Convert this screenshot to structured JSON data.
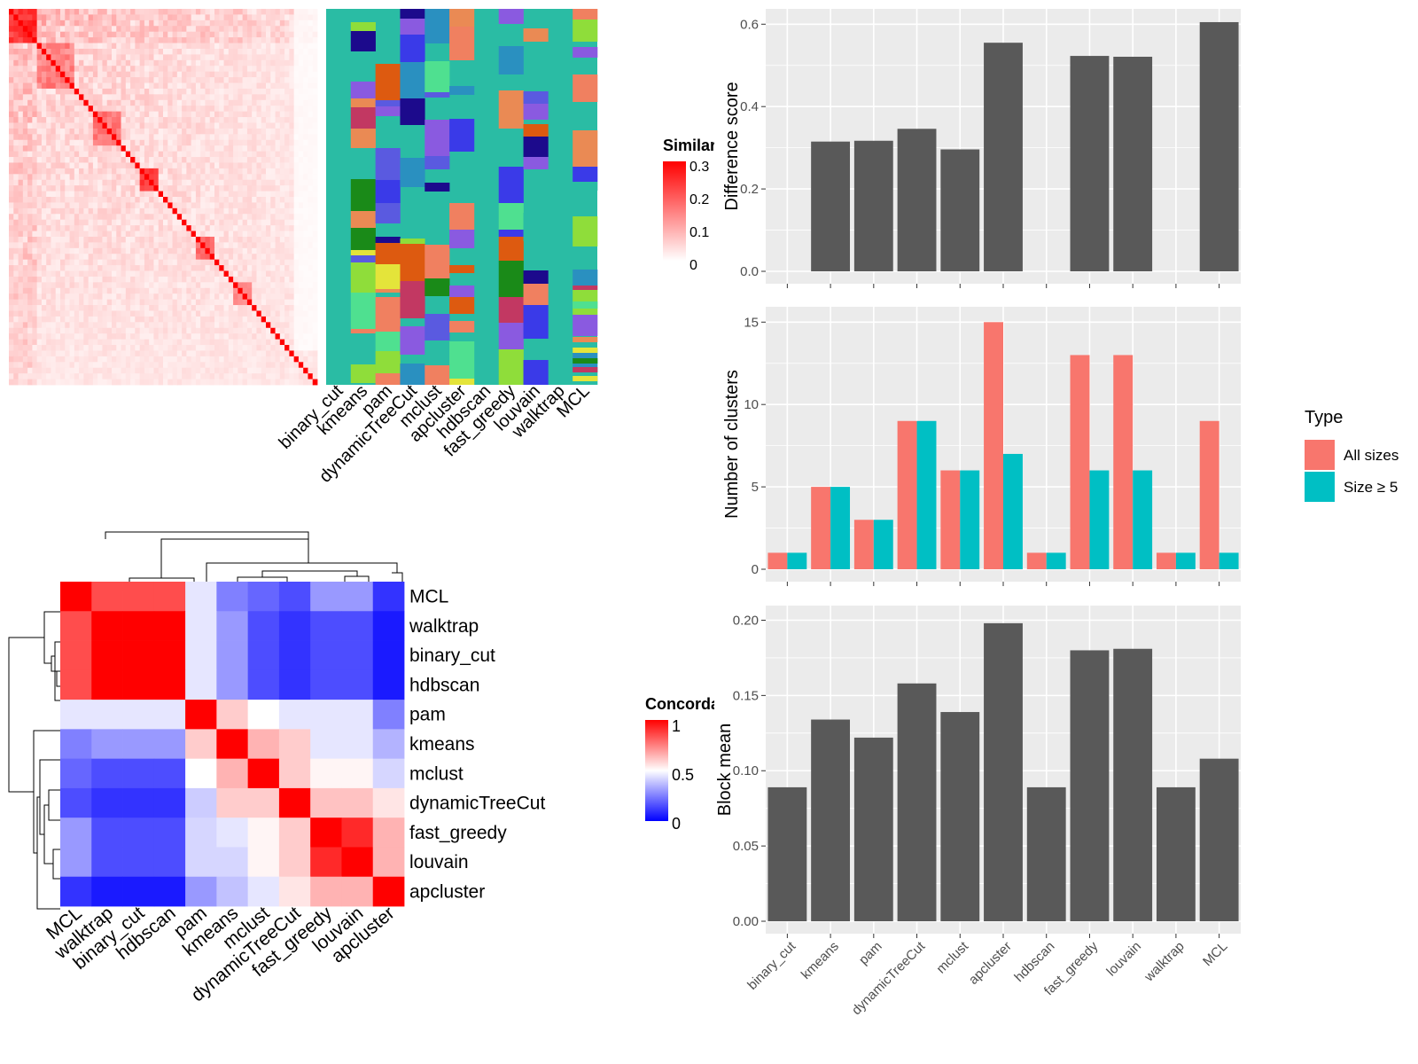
{
  "chart_data": [
    {
      "type": "heatmap",
      "legend_title": "Similarity",
      "legend_ticks": [
        "0.3",
        "0.2",
        "0.1",
        "0"
      ],
      "methods": [
        "binary_cut",
        "kmeans",
        "pam",
        "dynamicTreeCut",
        "mclust",
        "apcluster",
        "hdbscan",
        "fast_greedy",
        "louvain",
        "walktrap",
        "MCL"
      ]
    },
    {
      "type": "heatmap",
      "legend_title": "Concordance",
      "legend_ticks": [
        "1",
        "0.5",
        "0"
      ],
      "rows": [
        "MCL",
        "walktrap",
        "binary_cut",
        "hdbscan",
        "pam",
        "kmeans",
        "mclust",
        "dynamicTreeCut",
        "fast_greedy",
        "louvain",
        "apcluster"
      ],
      "cols": [
        "MCL",
        "walktrap",
        "binary_cut",
        "hdbscan",
        "pam",
        "kmeans",
        "mclust",
        "dynamicTreeCut",
        "fast_greedy",
        "louvain",
        "apcluster"
      ],
      "values": [
        [
          1.0,
          0.85,
          0.85,
          0.85,
          0.45,
          0.25,
          0.2,
          0.15,
          0.3,
          0.3,
          0.1
        ],
        [
          0.85,
          1.0,
          1.0,
          1.0,
          0.45,
          0.3,
          0.15,
          0.1,
          0.15,
          0.15,
          0.05
        ],
        [
          0.85,
          1.0,
          1.0,
          1.0,
          0.45,
          0.3,
          0.15,
          0.1,
          0.15,
          0.15,
          0.05
        ],
        [
          0.85,
          1.0,
          1.0,
          1.0,
          0.45,
          0.3,
          0.15,
          0.1,
          0.15,
          0.15,
          0.05
        ],
        [
          0.45,
          0.45,
          0.45,
          0.45,
          1.0,
          0.6,
          0.5,
          0.45,
          0.45,
          0.45,
          0.25
        ],
        [
          0.25,
          0.3,
          0.3,
          0.3,
          0.6,
          1.0,
          0.65,
          0.6,
          0.45,
          0.45,
          0.35
        ],
        [
          0.2,
          0.15,
          0.15,
          0.15,
          0.5,
          0.65,
          1.0,
          0.6,
          0.52,
          0.52,
          0.42
        ],
        [
          0.15,
          0.1,
          0.1,
          0.1,
          0.4,
          0.6,
          0.6,
          1.0,
          0.62,
          0.62,
          0.55
        ],
        [
          0.3,
          0.15,
          0.15,
          0.15,
          0.42,
          0.45,
          0.52,
          0.6,
          1.0,
          0.92,
          0.65
        ],
        [
          0.3,
          0.15,
          0.15,
          0.15,
          0.42,
          0.42,
          0.52,
          0.6,
          0.92,
          1.0,
          0.65
        ],
        [
          0.1,
          0.05,
          0.05,
          0.05,
          0.3,
          0.38,
          0.45,
          0.55,
          0.65,
          0.65,
          1.0
        ]
      ]
    },
    {
      "type": "bar",
      "categories": [
        "binary_cut",
        "kmeans",
        "pam",
        "dynamicTreeCut",
        "mclust",
        "apcluster",
        "hdbscan",
        "fast_greedy",
        "louvain",
        "walktrap",
        "MCL"
      ],
      "values": [
        0,
        0.315,
        0.317,
        0.346,
        0.296,
        0.555,
        0,
        0.523,
        0.521,
        0,
        0.605
      ],
      "ylabel": "Difference score",
      "ylim": [
        0,
        0.62
      ],
      "yticks": [
        "0.0",
        "0.2",
        "0.4",
        "0.6"
      ],
      "grid": true
    },
    {
      "type": "bar",
      "categories": [
        "binary_cut",
        "kmeans",
        "pam",
        "dynamicTreeCut",
        "mclust",
        "apcluster",
        "hdbscan",
        "fast_greedy",
        "louvain",
        "walktrap",
        "MCL"
      ],
      "series": [
        {
          "name": "All sizes",
          "values": [
            1,
            5,
            3,
            9,
            6,
            15,
            1,
            13,
            13,
            1,
            9
          ]
        },
        {
          "name": "Size ≥ 5",
          "values": [
            1,
            5,
            3,
            9,
            6,
            7,
            1,
            6,
            6,
            1,
            1
          ]
        }
      ],
      "ylabel": "Number of clusters",
      "ylim": [
        0,
        15.5
      ],
      "yticks": [
        "0",
        "5",
        "10",
        "15"
      ],
      "legend_title": "Type",
      "legend_position": "right",
      "grid": true
    },
    {
      "type": "bar",
      "categories": [
        "binary_cut",
        "kmeans",
        "pam",
        "dynamicTreeCut",
        "mclust",
        "apcluster",
        "hdbscan",
        "fast_greedy",
        "louvain",
        "walktrap",
        "MCL"
      ],
      "values": [
        0.089,
        0.134,
        0.122,
        0.158,
        0.139,
        0.198,
        0.089,
        0.18,
        0.181,
        0.089,
        0.108
      ],
      "ylabel": "Block mean",
      "ylim": [
        0,
        0.205
      ],
      "yticks": [
        "0.00",
        "0.05",
        "0.10",
        "0.15",
        "0.20"
      ],
      "grid": true
    }
  ],
  "colors": {
    "bar": "#595959",
    "panel_bg": "#ebebeb",
    "grid": "#ffffff",
    "series": [
      "#f8766d",
      "#00bfc4"
    ],
    "heat_high": "#ff0000",
    "heat_mid": "#ffffff",
    "heat_low": "#0000ff",
    "teal": "#2abca4"
  }
}
